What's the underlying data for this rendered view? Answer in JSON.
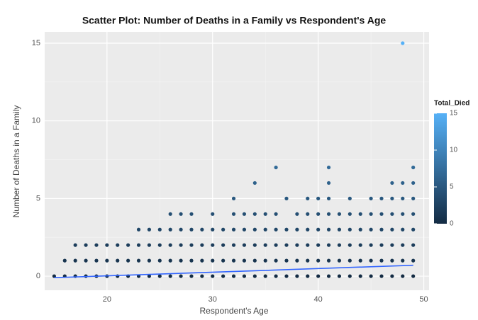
{
  "chart_data": {
    "type": "scatter",
    "title": "Scatter Plot: Number of Deaths in a Family vs Respondent's Age",
    "x_label": "Respondent's Age",
    "y_label": "Number of Deaths in a Family",
    "legend_title": "Total_Died",
    "x": [
      15,
      16,
      17,
      18,
      19,
      20,
      21,
      22,
      23,
      24,
      25,
      26,
      27,
      28,
      29,
      30,
      31,
      32,
      33,
      34,
      35,
      36,
      37,
      38,
      39,
      40,
      41,
      42,
      43,
      44,
      45,
      46,
      47,
      48,
      49,
      16,
      17,
      18,
      19,
      20,
      21,
      22,
      23,
      24,
      25,
      26,
      27,
      28,
      29,
      30,
      31,
      32,
      33,
      34,
      35,
      36,
      37,
      38,
      39,
      40,
      41,
      42,
      43,
      44,
      45,
      46,
      47,
      48,
      49,
      17,
      18,
      19,
      20,
      21,
      22,
      23,
      24,
      25,
      26,
      27,
      28,
      29,
      30,
      31,
      32,
      33,
      34,
      35,
      36,
      37,
      38,
      39,
      40,
      41,
      42,
      43,
      44,
      45,
      46,
      47,
      48,
      49,
      23,
      24,
      25,
      26,
      27,
      28,
      29,
      30,
      31,
      32,
      33,
      34,
      35,
      36,
      37,
      38,
      39,
      40,
      41,
      42,
      43,
      44,
      45,
      46,
      47,
      48,
      49,
      26,
      27,
      28,
      30,
      32,
      33,
      34,
      35,
      36,
      38,
      39,
      40,
      41,
      42,
      43,
      44,
      45,
      46,
      47,
      48,
      49,
      32,
      37,
      39,
      40,
      41,
      43,
      45,
      46,
      47,
      48,
      49,
      34,
      41,
      47,
      48,
      49,
      36,
      41,
      49,
      48
    ],
    "values": [
      0,
      0,
      0,
      0,
      0,
      0,
      0,
      0,
      0,
      0,
      0,
      0,
      0,
      0,
      0,
      0,
      0,
      0,
      0,
      0,
      0,
      0,
      0,
      0,
      0,
      0,
      0,
      0,
      0,
      0,
      0,
      0,
      0,
      0,
      0,
      1,
      1,
      1,
      1,
      1,
      1,
      1,
      1,
      1,
      1,
      1,
      1,
      1,
      1,
      1,
      1,
      1,
      1,
      1,
      1,
      1,
      1,
      1,
      1,
      1,
      1,
      1,
      1,
      1,
      1,
      1,
      1,
      1,
      1,
      2,
      2,
      2,
      2,
      2,
      2,
      2,
      2,
      2,
      2,
      2,
      2,
      2,
      2,
      2,
      2,
      2,
      2,
      2,
      2,
      2,
      2,
      2,
      2,
      2,
      2,
      2,
      2,
      2,
      2,
      2,
      2,
      2,
      3,
      3,
      3,
      3,
      3,
      3,
      3,
      3,
      3,
      3,
      3,
      3,
      3,
      3,
      3,
      3,
      3,
      3,
      3,
      3,
      3,
      3,
      3,
      3,
      3,
      3,
      3,
      4,
      4,
      4,
      4,
      4,
      4,
      4,
      4,
      4,
      4,
      4,
      4,
      4,
      4,
      4,
      4,
      4,
      4,
      4,
      4,
      4,
      5,
      5,
      5,
      5,
      5,
      5,
      5,
      5,
      5,
      5,
      5,
      6,
      6,
      6,
      6,
      6,
      7,
      7,
      7,
      15
    ],
    "colorscale": [
      "#132B43",
      "#56B1F7"
    ],
    "clim": [
      0,
      15
    ],
    "cticks": [
      0,
      5,
      10,
      15
    ],
    "trend": {
      "x": [
        15,
        49
      ],
      "values": [
        -0.1,
        0.7
      ],
      "color": "#3366ff"
    },
    "xlim": [
      14.1,
      50.5
    ],
    "ylim": [
      -0.91,
      15.73
    ],
    "xticks": [
      20,
      30,
      40,
      50
    ],
    "yticks": [
      0,
      5,
      10,
      15
    ],
    "grid": true
  }
}
